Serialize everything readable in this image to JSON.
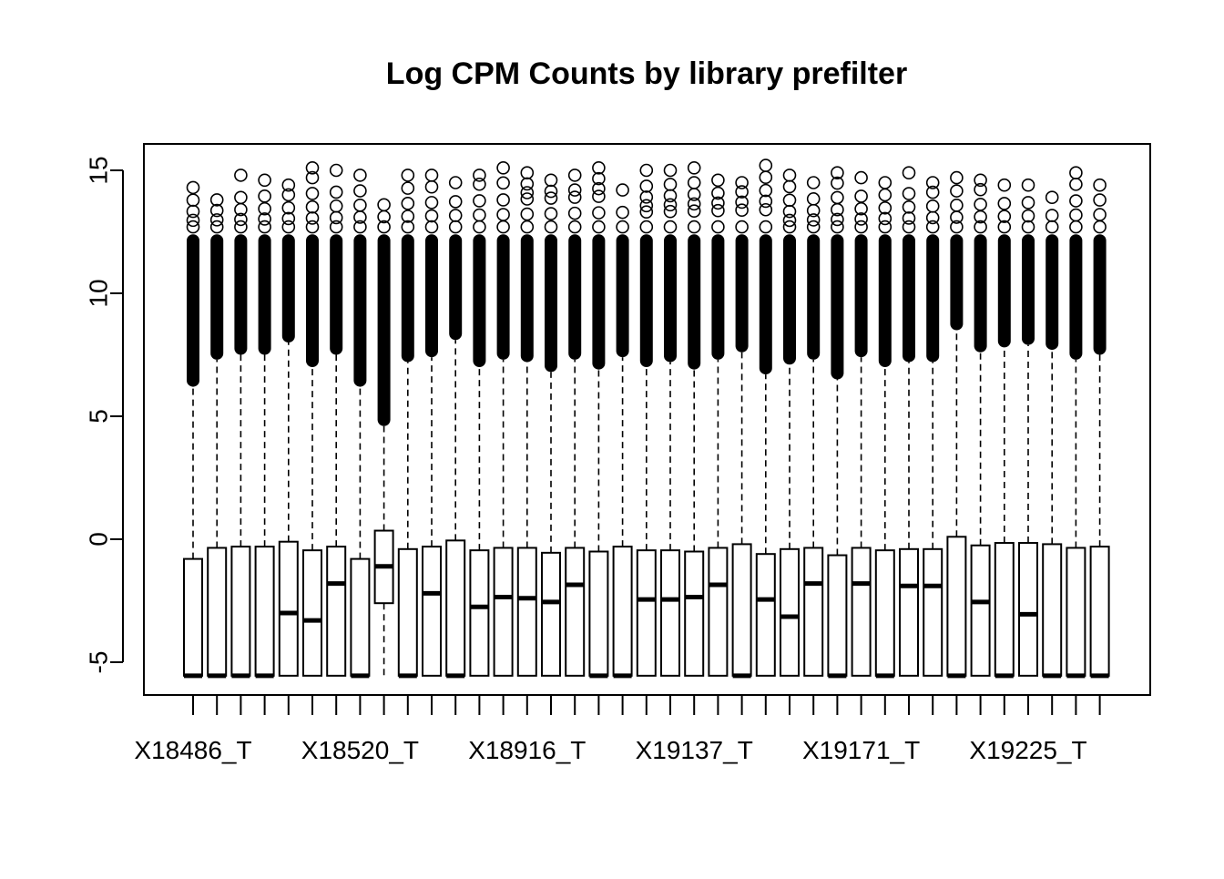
{
  "chart_data": {
    "type": "boxplot",
    "title": "Log CPM Counts by library prefilter",
    "xlabel": "",
    "ylabel": "",
    "ylim": [
      -6.3,
      16.0
    ],
    "y_ticks": [
      "-5",
      "0",
      "5",
      "10",
      "15"
    ],
    "y_tick_values": [
      -5,
      0,
      5,
      10,
      15
    ],
    "x_tick_labels": [
      {
        "index": 0,
        "label": "X18486_T"
      },
      {
        "index": 7,
        "label": "X18520_T"
      },
      {
        "index": 14,
        "label": "X18916_T"
      },
      {
        "index": 21,
        "label": "X19137_T"
      },
      {
        "index": 28,
        "label": "X19171_T"
      },
      {
        "index": 35,
        "label": "X19225_T"
      }
    ],
    "n_samples": 39,
    "whisker_min": -5.55,
    "boxes": [
      {
        "q1": -5.55,
        "median": -5.55,
        "q3": -0.8,
        "upper_whisker": 6.2,
        "max": 14.3
      },
      {
        "q1": -5.55,
        "median": -5.55,
        "q3": -0.35,
        "upper_whisker": 7.3,
        "max": 13.8
      },
      {
        "q1": -5.55,
        "median": -5.55,
        "q3": -0.3,
        "upper_whisker": 7.5,
        "max": 14.8
      },
      {
        "q1": -5.55,
        "median": -5.55,
        "q3": -0.3,
        "upper_whisker": 7.5,
        "max": 14.6
      },
      {
        "q1": -5.55,
        "median": -3.0,
        "q3": -0.1,
        "upper_whisker": 8.0,
        "max": 14.4
      },
      {
        "q1": -5.55,
        "median": -3.3,
        "q3": -0.45,
        "upper_whisker": 7.0,
        "max": 15.1
      },
      {
        "q1": -5.55,
        "median": -1.8,
        "q3": -0.3,
        "upper_whisker": 7.5,
        "max": 15.0
      },
      {
        "q1": -5.55,
        "median": -5.55,
        "q3": -0.8,
        "upper_whisker": 6.2,
        "max": 14.8
      },
      {
        "q1": -2.6,
        "median": -1.1,
        "q3": 0.35,
        "upper_whisker": 4.6,
        "max": 13.6
      },
      {
        "q1": -5.55,
        "median": -5.55,
        "q3": -0.4,
        "upper_whisker": 7.2,
        "max": 14.8
      },
      {
        "q1": -5.55,
        "median": -2.2,
        "q3": -0.3,
        "upper_whisker": 7.4,
        "max": 14.8
      },
      {
        "q1": -5.55,
        "median": -5.55,
        "q3": -0.05,
        "upper_whisker": 8.1,
        "max": 14.5
      },
      {
        "q1": -5.55,
        "median": -2.75,
        "q3": -0.45,
        "upper_whisker": 7.0,
        "max": 14.8
      },
      {
        "q1": -5.55,
        "median": -2.35,
        "q3": -0.35,
        "upper_whisker": 7.3,
        "max": 15.1
      },
      {
        "q1": -5.55,
        "median": -2.4,
        "q3": -0.35,
        "upper_whisker": 7.2,
        "max": 14.9
      },
      {
        "q1": -5.55,
        "median": -2.55,
        "q3": -0.55,
        "upper_whisker": 6.8,
        "max": 14.6
      },
      {
        "q1": -5.55,
        "median": -1.85,
        "q3": -0.35,
        "upper_whisker": 7.3,
        "max": 14.8
      },
      {
        "q1": -5.55,
        "median": -5.55,
        "q3": -0.5,
        "upper_whisker": 6.9,
        "max": 15.1
      },
      {
        "q1": -5.55,
        "median": -5.55,
        "q3": -0.3,
        "upper_whisker": 7.4,
        "max": 14.2
      },
      {
        "q1": -5.55,
        "median": -2.45,
        "q3": -0.45,
        "upper_whisker": 7.0,
        "max": 15.0
      },
      {
        "q1": -5.55,
        "median": -2.45,
        "q3": -0.45,
        "upper_whisker": 7.2,
        "max": 15.0
      },
      {
        "q1": -5.55,
        "median": -2.35,
        "q3": -0.5,
        "upper_whisker": 6.9,
        "max": 15.1
      },
      {
        "q1": -5.55,
        "median": -1.85,
        "q3": -0.35,
        "upper_whisker": 7.3,
        "max": 14.6
      },
      {
        "q1": -5.55,
        "median": -5.55,
        "q3": -0.2,
        "upper_whisker": 7.6,
        "max": 14.5
      },
      {
        "q1": -5.55,
        "median": -2.45,
        "q3": -0.6,
        "upper_whisker": 6.7,
        "max": 15.2
      },
      {
        "q1": -5.55,
        "median": -3.15,
        "q3": -0.4,
        "upper_whisker": 7.1,
        "max": 14.8
      },
      {
        "q1": -5.55,
        "median": -1.8,
        "q3": -0.35,
        "upper_whisker": 7.3,
        "max": 14.5
      },
      {
        "q1": -5.55,
        "median": -5.55,
        "q3": -0.65,
        "upper_whisker": 6.5,
        "max": 14.9
      },
      {
        "q1": -5.55,
        "median": -1.8,
        "q3": -0.35,
        "upper_whisker": 7.4,
        "max": 14.7
      },
      {
        "q1": -5.55,
        "median": -5.55,
        "q3": -0.45,
        "upper_whisker": 7.0,
        "max": 14.5
      },
      {
        "q1": -5.55,
        "median": -1.9,
        "q3": -0.4,
        "upper_whisker": 7.2,
        "max": 14.9
      },
      {
        "q1": -5.55,
        "median": -1.9,
        "q3": -0.4,
        "upper_whisker": 7.2,
        "max": 14.5
      },
      {
        "q1": -5.55,
        "median": -5.55,
        "q3": 0.1,
        "upper_whisker": 8.5,
        "max": 14.7
      },
      {
        "q1": -5.55,
        "median": -2.55,
        "q3": -0.25,
        "upper_whisker": 7.6,
        "max": 14.6
      },
      {
        "q1": -5.55,
        "median": -5.55,
        "q3": -0.15,
        "upper_whisker": 7.8,
        "max": 14.4
      },
      {
        "q1": -5.55,
        "median": -3.05,
        "q3": -0.15,
        "upper_whisker": 7.9,
        "max": 14.4
      },
      {
        "q1": -5.55,
        "median": -5.55,
        "q3": -0.2,
        "upper_whisker": 7.7,
        "max": 13.9
      },
      {
        "q1": -5.55,
        "median": -5.55,
        "q3": -0.35,
        "upper_whisker": 7.3,
        "max": 14.9
      },
      {
        "q1": -5.55,
        "median": -5.55,
        "q3": -0.3,
        "upper_whisker": 7.5,
        "max": 14.4
      }
    ],
    "grid": false,
    "legend": "none"
  }
}
